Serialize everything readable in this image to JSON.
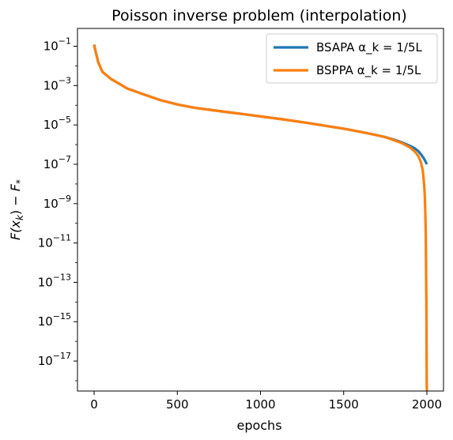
{
  "chart_data": {
    "type": "line",
    "title": "Poisson inverse problem (interpolation)",
    "xlabel": "epochs",
    "ylabel": "F(x_k) − F_*",
    "yscale": "log",
    "xlim": [
      -100,
      2100
    ],
    "ylim": [
      3e-19,
      0.8
    ],
    "xticks": [
      0,
      500,
      1000,
      1500,
      2000
    ],
    "xtick_labels": [
      "0",
      "500",
      "1000",
      "1500",
      "2000"
    ],
    "yticks": [
      -1,
      -3,
      -5,
      -7,
      -9,
      -11,
      -13,
      -15,
      -17
    ],
    "legend_position": "top-right",
    "grid": false,
    "series": [
      {
        "name": "BSAPA α_k = 1/5L",
        "color": "#1f77b4",
        "x": [
          0,
          10,
          25,
          50,
          100,
          200,
          300,
          400,
          500,
          600,
          700,
          800,
          900,
          1000,
          1100,
          1200,
          1300,
          1400,
          1500,
          1600,
          1700,
          1750,
          1800,
          1850,
          1900,
          1930,
          1950,
          1970,
          1985,
          2000
        ],
        "y": [
          0.12,
          0.05,
          0.015,
          0.005,
          0.0022,
          0.0007,
          0.00035,
          0.00018,
          0.00011,
          7.5e-05,
          5.8e-05,
          4.5e-05,
          3.5e-05,
          2.7e-05,
          2.1e-05,
          1.6e-05,
          1.2e-05,
          8.8e-06,
          6.4e-06,
          4.5e-06,
          3e-06,
          2.4e-06,
          1.8e-06,
          1.3e-06,
          8.5e-07,
          6.2e-07,
          4.5e-07,
          2.8e-07,
          1.8e-07,
          1e-07
        ]
      },
      {
        "name": "BSPPA α_k = 1/5L",
        "color": "#ff7f0e",
        "x": [
          0,
          10,
          25,
          50,
          100,
          200,
          300,
          400,
          500,
          600,
          700,
          800,
          900,
          1000,
          1100,
          1200,
          1300,
          1400,
          1500,
          1600,
          1700,
          1750,
          1800,
          1850,
          1900,
          1930,
          1950,
          1965,
          1975,
          1980,
          1985,
          1988,
          1990,
          1993,
          1995,
          1997,
          1998,
          1999,
          2000
        ],
        "y": [
          0.12,
          0.05,
          0.015,
          0.005,
          0.0022,
          0.0007,
          0.00035,
          0.00018,
          0.00011,
          7.5e-05,
          5.8e-05,
          4.5e-05,
          3.5e-05,
          2.7e-05,
          2.1e-05,
          1.6e-05,
          1.2e-05,
          8.8e-06,
          6.4e-06,
          4.5e-06,
          3e-06,
          2.4e-06,
          1.7e-06,
          1.2e-06,
          7e-07,
          4.2e-07,
          2.5e-07,
          1.2e-07,
          5e-08,
          2e-08,
          6e-09,
          2e-09,
          5e-10,
          5e-11,
          1e-12,
          1e-14,
          1e-16,
          1e-18,
          3e-19
        ]
      }
    ]
  }
}
